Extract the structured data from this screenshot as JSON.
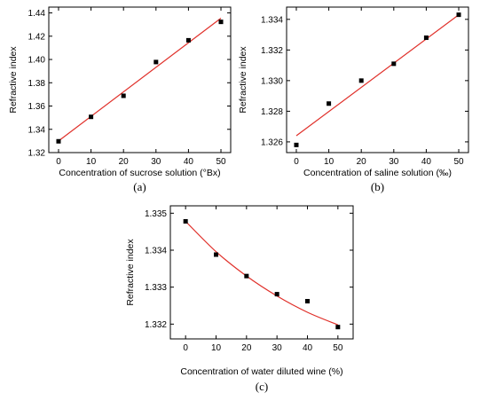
{
  "chart_data": [
    {
      "type": "scatter",
      "caption": "(a)",
      "xlabel": "Concentration of sucrose solution (°Bx)",
      "ylabel": "Refractive index",
      "xlim": [
        -3,
        53
      ],
      "ylim": [
        1.32,
        1.445
      ],
      "xticks": [
        "0",
        "10",
        "20",
        "30",
        "40",
        "50"
      ],
      "yticks": [
        "1.32",
        "1.34",
        "1.36",
        "1.38",
        "1.40",
        "1.42",
        "1.44"
      ],
      "x": [
        0,
        10,
        20,
        30,
        40,
        50
      ],
      "y": [
        1.3297,
        1.3507,
        1.3688,
        1.3978,
        1.4165,
        1.4323
      ],
      "fit": {
        "type": "linear",
        "x": [
          0,
          50
        ],
        "y": [
          1.33,
          1.4355
        ]
      },
      "colors": {
        "points": "#000000",
        "fit": "#e0302a"
      }
    },
    {
      "type": "scatter",
      "caption": "(b)",
      "xlabel": "Concentration of saline solution (‰)",
      "ylabel": "Refractive index",
      "xlim": [
        -3,
        53
      ],
      "ylim": [
        1.3253,
        1.3348
      ],
      "xticks": [
        "0",
        "10",
        "20",
        "30",
        "40",
        "50"
      ],
      "yticks": [
        "1.326",
        "1.328",
        "1.330",
        "1.332",
        "1.334"
      ],
      "x": [
        0,
        10,
        20,
        30,
        40,
        50
      ],
      "y": [
        1.3258,
        1.3285,
        1.33,
        1.3311,
        1.3328,
        1.3343
      ],
      "fit": {
        "type": "linear",
        "x": [
          0,
          50
        ],
        "y": [
          1.3264,
          1.3343
        ]
      },
      "colors": {
        "points": "#000000",
        "fit": "#e0302a"
      }
    },
    {
      "type": "scatter",
      "caption": "(c)",
      "xlabel": "Concentration of water diluted wine (%)",
      "ylabel": "Refractive index",
      "xlim": [
        -5,
        55
      ],
      "ylim": [
        1.3316,
        1.3352
      ],
      "xticks": [
        "0",
        "10",
        "20",
        "30",
        "40",
        "50"
      ],
      "yticks": [
        "1.332",
        "1.333",
        "1.334",
        "1.335"
      ],
      "x": [
        0,
        10,
        20,
        30,
        40,
        50
      ],
      "y": [
        1.33478,
        1.33388,
        1.3333,
        1.33281,
        1.33262,
        1.33192
      ],
      "fit": {
        "type": "exponential-decay",
        "x": [
          0,
          10,
          20,
          30,
          40,
          50
        ],
        "y": [
          1.33478,
          1.33396,
          1.3333,
          1.33276,
          1.33232,
          1.33198
        ]
      },
      "colors": {
        "points": "#000000",
        "fit": "#e0302a"
      }
    }
  ]
}
